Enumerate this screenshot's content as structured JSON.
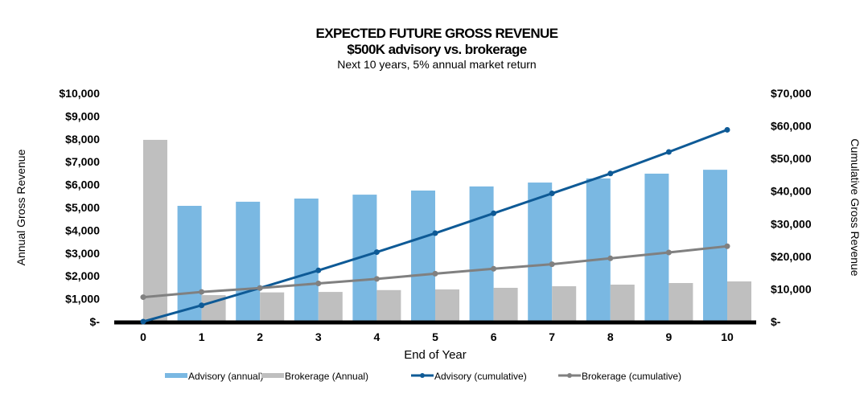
{
  "chart_data": {
    "type": "bar",
    "title": "EXPECTED FUTURE GROSS REVENUE",
    "subtitle": "$500K advisory vs. brokerage",
    "subtitle2": "Next 10 years, 5% annual  market return",
    "xlabel": "End of Year",
    "ylabel": "Annual  Gross Revenue",
    "y2label": "Cumulative  Gross Revenue",
    "categories": [
      "0",
      "1",
      "2",
      "3",
      "4",
      "5",
      "6",
      "7",
      "8",
      "9",
      "10"
    ],
    "ylim": [
      0,
      10000
    ],
    "y2lim": [
      0,
      70000
    ],
    "yticks": [
      "$-",
      "$1,000",
      "$2,000",
      "$3,000",
      "$4,000",
      "$5,000",
      "$6,000",
      "$7,000",
      "$8,000",
      "$9,000",
      "$10,000"
    ],
    "y2ticks": [
      "$-",
      "$10,000",
      "$20,000",
      "$30,000",
      "$40,000",
      "$50,000",
      "$60,000",
      "$70,000"
    ],
    "grid": false,
    "legend_position": "bottom",
    "series": [
      {
        "name": "Advisory (annual)",
        "type": "bar",
        "axis": "left",
        "color": "#7AB8E2",
        "values": [
          0,
          5070,
          5250,
          5390,
          5560,
          5740,
          5920,
          6090,
          6270,
          6480,
          6650
        ]
      },
      {
        "name": "Brokerage (Annual)",
        "type": "bar",
        "axis": "left",
        "color": "#BFBFBF",
        "values": [
          7960,
          1160,
          1280,
          1300,
          1380,
          1410,
          1480,
          1550,
          1620,
          1690,
          1760
        ]
      },
      {
        "name": "Advisory (cumulative)",
        "type": "line",
        "axis": "right",
        "color": "#0E5A96",
        "values": [
          0,
          5000,
          10300,
          15700,
          21300,
          27100,
          33200,
          39300,
          45400,
          52000,
          58800
        ]
      },
      {
        "name": "Brokerage (cumulative)",
        "type": "line",
        "axis": "right",
        "color": "#808080",
        "values": [
          7500,
          9100,
          10300,
          11700,
          13100,
          14700,
          16200,
          17600,
          19400,
          21200,
          23100
        ]
      }
    ]
  }
}
